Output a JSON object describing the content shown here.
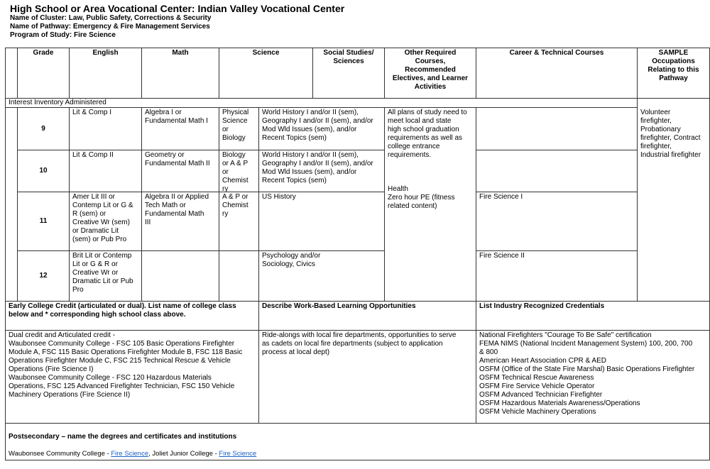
{
  "title": "High School or Area Vocational Center: Indian Valley Vocational Center",
  "cluster": "Name of Cluster: Law, Public Safety, Corrections & Security",
  "pathway": "Name of Pathway: Emergency & Fire Management Services",
  "program": "Program of Study: Fire Science",
  "headers": {
    "grade": "Grade",
    "english": "English",
    "math": "Math",
    "science": "Science",
    "social": "Social Studies/\nSciences",
    "other": "Other Required\nCourses,\nRecommended\nElectives, and Learner\nActivities",
    "cte": "Career & Technical Courses",
    "sample": "SAMPLE\nOccupations\nRelating to this\nPathway"
  },
  "interest": "Interest Inventory Administered",
  "rows": [
    {
      "grade": "9",
      "english": "Lit & Comp I",
      "math": "Algebra I or\nFundamental Math I",
      "science": "Physical\nScience\nor\nBiology",
      "social": "World History I and/or II (sem),\nGeography I and/or II (sem), and/or\nMod Wld Issues (sem), and/or\nRecent Topics (sem)",
      "cte": ""
    },
    {
      "grade": "10",
      "english": "Lit & Comp II",
      "math": "Geometry or\nFundamental Math II",
      "science": "Biology\nor A & P\nor\nChemist\nry",
      "social": "World History I and/or II (sem),\nGeography I and/or II (sem), and/or\nMod Wld Issues (sem), and/or\nRecent Topics (sem)",
      "cte": ""
    },
    {
      "grade": "11",
      "english": "Amer Lit III or\nContemp Lit or G &\nR (sem) or\nCreative Wr (sem)\nor Dramatic Lit\n(sem) or Pub Pro",
      "math": "Algebra II or Applied\nTech Math or\nFundamental Math\nIII",
      "science": "A & P or\nChemist\nry",
      "social": "US History",
      "cte": "Fire Science I"
    },
    {
      "grade": "12",
      "english": "Brit Lit or Contemp\nLit or G & R or\nCreative Wr or\nDramatic Lit or Pub\nPro",
      "math": "",
      "science": "",
      "social": "Psychology and/or\nSociology, Civics",
      "cte": "Fire Science II"
    }
  ],
  "other": "All plans of study need to\nmeet local and state\nhigh school graduation\nrequirements as well as\ncollege entrance\nrequirements.\n\n\n\nHealth\nZero hour PE (fitness\nrelated content)",
  "sample": "Volunteer\nfirefighter,\nProbationary\nfirefighter, Contract\nfirefighter,\nIndustrial firefighter",
  "early_credit": {
    "heading": "Early College Credit (articulated or dual). List name of college class\nbelow and * corresponding high school class above.",
    "body": "Dual credit and Articulated credit -\nWaubonsee Community College -  FSC 105 Basic Operations Firefighter\nModule A, FSC 115 Basic Operations Firefighter Module B, FSC 118 Basic\nOperations Firefighter Module C, FSC 215 Technical Rescue & Vehicle\nOperations (Fire Science I)\nWaubonsee Community College - FSC 120 Hazardous Materials\nOperations, FSC 125 Advanced Firefighter Technician, FSC 150 Vehicle\nMachinery Operations (Fire Science II)"
  },
  "work_based": {
    "heading": "Describe Work-Based Learning Opportunities",
    "body": "Ride-alongs with local fire departments, opportunities to serve\nas cadets on local fire departments (subject to application\nprocess at local dept)"
  },
  "credentials": {
    "heading": "List Industry Recognized Credentials",
    "body": "National Firefighters \"Courage To Be Safe\" certification\nFEMA NIMS (National Incident Management System) 100, 200, 700\n& 800\nAmerican Heart Association CPR & AED\nOSFM (Office of the State Fire Marshal) Basic Operations Firefighter\nOSFM Technical Rescue Awareness\nOSFM Fire Service Vehicle Operator\nOSFM Advanced Technician Firefighter\nOSFM Hazardous Materials Awareness/Operations\nOSFM Vehicle Machinery Operations"
  },
  "postsecondary": {
    "heading": "Postsecondary – name the degrees and certificates and institutions",
    "school1": "Waubonsee Community College - ",
    "link1": "Fire Science",
    "sep": ", Joliet Junior College - ",
    "link2": "Fire Science"
  }
}
